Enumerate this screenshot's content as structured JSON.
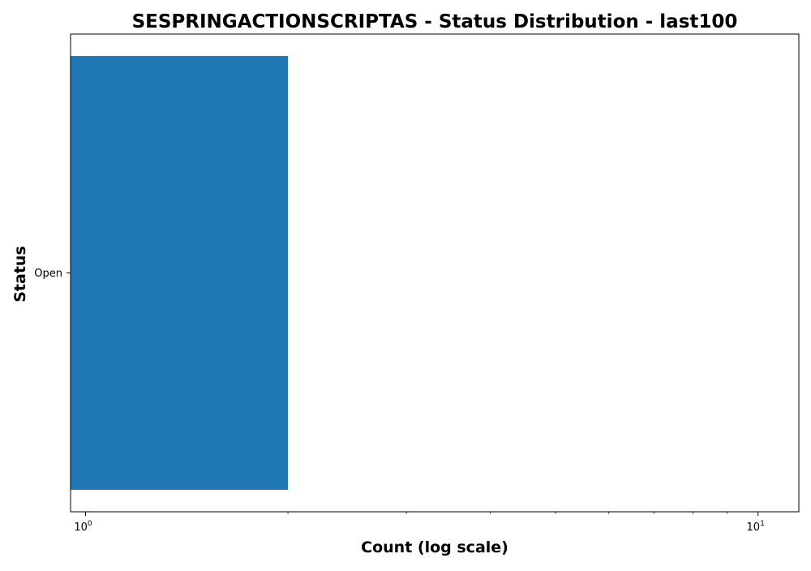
{
  "chart_data": {
    "type": "bar",
    "orientation": "horizontal",
    "title": "SESPRINGACTIONSCRIPTAS - Status Distribution - last100",
    "xlabel": "Count (log scale)",
    "ylabel": "Status",
    "x_scale": "log",
    "xlim": [
      0.95,
      11.5
    ],
    "x_major_ticks": [
      1,
      10
    ],
    "x_major_tick_labels": [
      {
        "base": "10",
        "exponent": "0"
      },
      {
        "base": "10",
        "exponent": "1"
      }
    ],
    "x_minor_ticks": [
      2,
      3,
      4,
      5,
      6,
      7,
      8,
      9
    ],
    "categories": [
      "Open"
    ],
    "values": [
      2
    ],
    "grid": false,
    "legend": "none",
    "bar_color": "#1f77b4"
  }
}
